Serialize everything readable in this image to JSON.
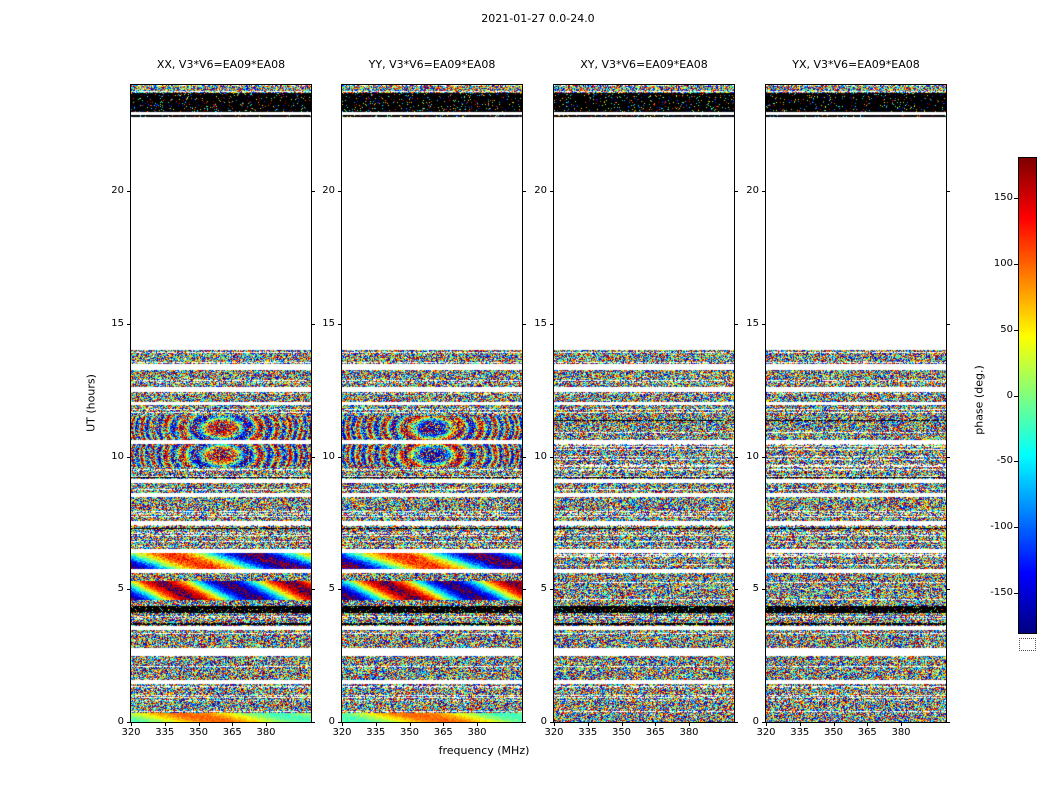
{
  "chart_data": {
    "type": "heatmap",
    "title": "2021-01-27 0.0-24.0",
    "xlabel": "frequency (MHz)",
    "ylabel": "UT (hours)",
    "x_range_mhz": [
      320,
      400
    ],
    "x_ticks_mhz": [
      320,
      335,
      350,
      365,
      380
    ],
    "y_range_hours": [
      0,
      24
    ],
    "y_ticks_hours": [
      0,
      5,
      10,
      15,
      20
    ],
    "panels": [
      {
        "pol": "XX",
        "title": "XX, V3*V6=EA09*EA08",
        "structured": true,
        "seed": 11
      },
      {
        "pol": "YY",
        "title": "YY, V3*V6=EA09*EA08",
        "structured": true,
        "seed": 23
      },
      {
        "pol": "XY",
        "title": "XY, V3*V6=EA09*EA08",
        "structured": false,
        "seed": 37
      },
      {
        "pol": "YX",
        "title": "YX, V3*V6=EA09*EA08",
        "structured": false,
        "seed": 51
      }
    ],
    "colorbar": {
      "label": "phase (deg.)",
      "colormap": "jet",
      "range_deg": [
        -180,
        180
      ],
      "ticks_deg": [
        150,
        100,
        50,
        0,
        -50,
        -100,
        -150
      ]
    },
    "time_bands": [
      {
        "from": 0.0,
        "to": 0.35,
        "type": "smooth",
        "base": 40,
        "amp": 60,
        "cycles": 1.0,
        "noise": 35,
        "drift": 4
      },
      {
        "from": 0.35,
        "to": 1.45,
        "type": "noise"
      },
      {
        "from": 1.45,
        "to": 1.58,
        "type": "white"
      },
      {
        "from": 1.58,
        "to": 2.5,
        "type": "noise"
      },
      {
        "from": 2.5,
        "to": 2.78,
        "type": "white"
      },
      {
        "from": 2.78,
        "to": 3.45,
        "type": "noise"
      },
      {
        "from": 3.45,
        "to": 3.62,
        "type": "white"
      },
      {
        "from": 3.62,
        "to": 4.1,
        "type": "noise"
      },
      {
        "from": 4.1,
        "to": 4.38,
        "type": "dark"
      },
      {
        "from": 4.38,
        "to": 4.58,
        "type": "noise"
      },
      {
        "from": 4.58,
        "to": 5.3,
        "type": "smooth",
        "base": 0,
        "amp": 175,
        "cycles": 1.4,
        "noise": 55,
        "drift": 2.5
      },
      {
        "from": 5.3,
        "to": 5.62,
        "type": "noise"
      },
      {
        "from": 5.62,
        "to": 5.76,
        "type": "white"
      },
      {
        "from": 5.76,
        "to": 6.38,
        "type": "smooth",
        "base": -30,
        "amp": 150,
        "cycles": 1.1,
        "noise": 70,
        "drift": 3
      },
      {
        "from": 6.38,
        "to": 6.52,
        "type": "white"
      },
      {
        "from": 6.52,
        "to": 7.42,
        "type": "noise"
      },
      {
        "from": 7.42,
        "to": 7.56,
        "type": "white"
      },
      {
        "from": 7.56,
        "to": 8.48,
        "type": "noise"
      },
      {
        "from": 8.48,
        "to": 8.62,
        "type": "white"
      },
      {
        "from": 8.62,
        "to": 9.02,
        "type": "noise"
      },
      {
        "from": 9.02,
        "to": 9.16,
        "type": "white"
      },
      {
        "from": 9.16,
        "to": 9.62,
        "type": "noise"
      },
      {
        "from": 9.62,
        "to": 10.48,
        "type": "fringe"
      },
      {
        "from": 10.48,
        "to": 10.62,
        "type": "white"
      },
      {
        "from": 10.62,
        "to": 11.52,
        "type": "fringe"
      },
      {
        "from": 11.52,
        "to": 11.93,
        "type": "noise"
      },
      {
        "from": 11.93,
        "to": 12.07,
        "type": "white"
      },
      {
        "from": 12.07,
        "to": 12.42,
        "type": "noise"
      },
      {
        "from": 12.42,
        "to": 12.62,
        "type": "white"
      },
      {
        "from": 12.62,
        "to": 13.28,
        "type": "noise"
      },
      {
        "from": 13.28,
        "to": 13.47,
        "type": "white"
      },
      {
        "from": 13.47,
        "to": 14.02,
        "type": "noise"
      },
      {
        "from": 14.02,
        "to": 22.78,
        "type": "white"
      },
      {
        "from": 22.78,
        "to": 22.88,
        "type": "dark"
      },
      {
        "from": 22.88,
        "to": 22.98,
        "type": "white"
      },
      {
        "from": 22.98,
        "to": 23.7,
        "type": "dark"
      },
      {
        "from": 23.7,
        "to": 24.0,
        "type": "noise"
      }
    ]
  }
}
